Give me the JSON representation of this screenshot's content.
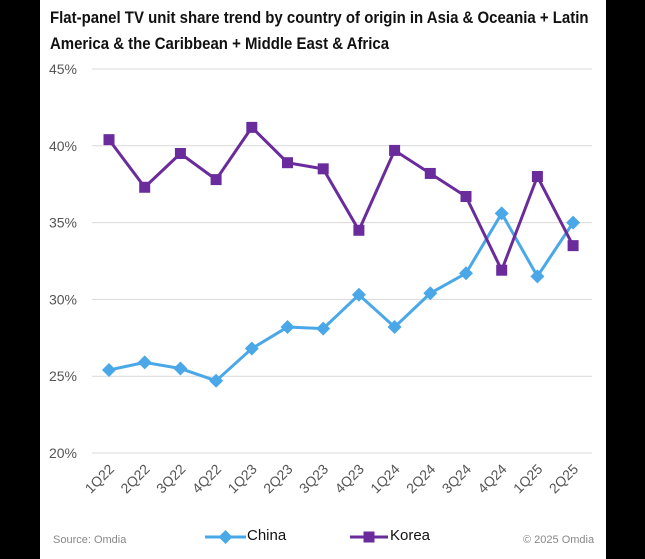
{
  "chart_data": {
    "type": "line",
    "title": "Flat-panel TV unit share trend by country of origin in Asia & Oceania + Latin America & the Caribbean + Middle East & Africa",
    "categories": [
      "1Q22",
      "2Q22",
      "3Q22",
      "4Q22",
      "1Q23",
      "2Q23",
      "3Q23",
      "4Q23",
      "1Q24",
      "2Q24",
      "3Q24",
      "4Q24",
      "1Q25",
      "2Q25"
    ],
    "ylim": [
      20,
      45
    ],
    "yticks": [
      "20%",
      "25%",
      "30%",
      "35%",
      "40%",
      "45%"
    ],
    "grid": true,
    "legend": "bottom",
    "series": [
      {
        "name": "China",
        "color": "#4aa8e8",
        "marker": "diamond",
        "values": [
          25.4,
          25.9,
          25.5,
          24.7,
          26.8,
          28.2,
          28.1,
          30.3,
          28.2,
          30.4,
          31.7,
          35.6,
          31.5,
          35.0
        ]
      },
      {
        "name": "Korea",
        "color": "#6a2c9c",
        "marker": "square",
        "values": [
          40.4,
          37.3,
          39.5,
          37.8,
          41.2,
          38.9,
          38.5,
          34.5,
          39.7,
          38.2,
          36.7,
          31.9,
          38.0,
          33.5
        ]
      }
    ]
  },
  "footer": {
    "source": "Source: Omdia",
    "copyright": "© 2025 Omdia"
  }
}
